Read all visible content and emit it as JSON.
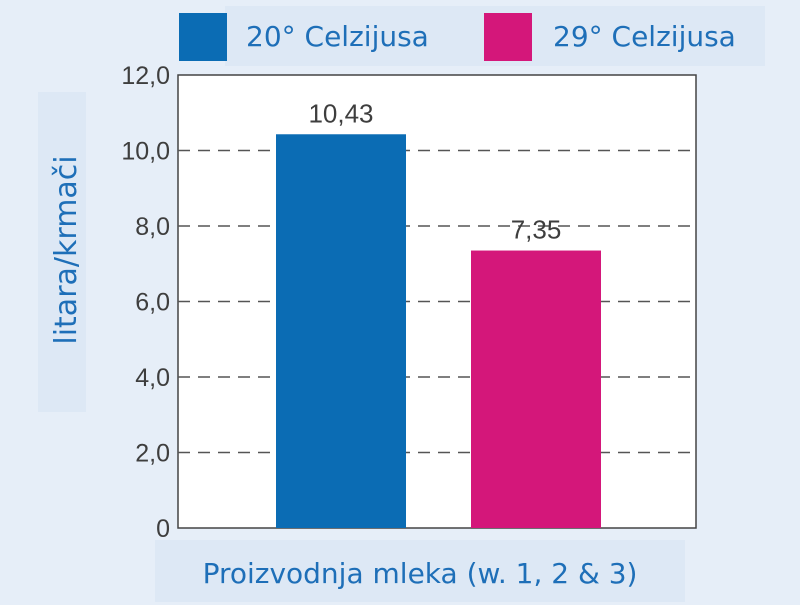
{
  "chart_data": {
    "type": "bar",
    "categories": [
      "20° Celzijusa",
      "29° Celzijusa"
    ],
    "values": [
      10.43,
      7.35
    ],
    "value_labels": [
      "10,43",
      "7,35"
    ],
    "colors": [
      "#0b6cb4",
      "#d4177a"
    ],
    "ylim": [
      0,
      12
    ],
    "yticks": [
      0,
      2,
      4,
      6,
      8,
      10,
      12
    ],
    "ytick_labels": [
      "0",
      "2,0",
      "4,0",
      "6,0",
      "8,0",
      "10,0",
      "12,0"
    ],
    "ylabel": "litara/krmači",
    "xlabel": "Proizvodnja mleka (w. 1, 2 & 3)",
    "legend": {
      "position": "top",
      "entries": [
        "20° Celzijusa",
        "29° Celzijusa"
      ]
    },
    "grid": "horizontal-dashed"
  }
}
